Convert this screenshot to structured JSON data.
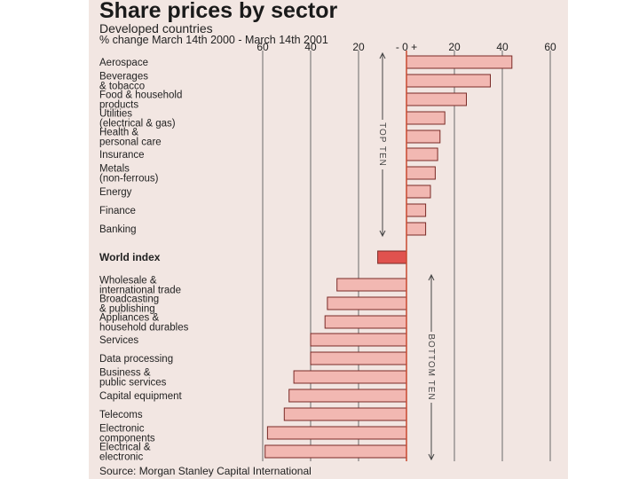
{
  "chart_data": {
    "type": "bar",
    "orientation": "horizontal",
    "title": "Share prices by sector",
    "subtitle": "Developed countries",
    "xlabel": "% change March 14th 2000 - March 14th 2001",
    "x_ticks": [
      "60",
      "40",
      "20",
      "- 0 +",
      "20",
      "40",
      "60"
    ],
    "x_tick_values": [
      -60,
      -40,
      -20,
      0,
      20,
      40,
      60
    ],
    "xlim": [
      -60,
      60
    ],
    "source": "Source: Morgan Stanley Capital International",
    "group_labels": {
      "top": "TOP TEN",
      "bottom": "BOTTOM TEN"
    },
    "categories": [
      {
        "label": [
          "Aerospace"
        ],
        "value": 44
      },
      {
        "label": [
          "Beverages",
          "& tobacco"
        ],
        "value": 35
      },
      {
        "label": [
          "Food & household",
          "products"
        ],
        "value": 25
      },
      {
        "label": [
          "Utilities",
          "(electrical & gas)"
        ],
        "value": 16
      },
      {
        "label": [
          "Health &",
          "personal care"
        ],
        "value": 14
      },
      {
        "label": [
          "Insurance"
        ],
        "value": 13
      },
      {
        "label": [
          "Metals",
          "(non-ferrous)"
        ],
        "value": 12
      },
      {
        "label": [
          "Energy"
        ],
        "value": 10
      },
      {
        "label": [
          "Finance"
        ],
        "value": 8
      },
      {
        "label": [
          "Banking"
        ],
        "value": 8
      },
      {
        "label": [
          "World index"
        ],
        "value": -12,
        "highlight": true
      },
      {
        "label": [
          "Wholesale &",
          "international trade"
        ],
        "value": -29
      },
      {
        "label": [
          "Broadcasting",
          "& publishing"
        ],
        "value": -33
      },
      {
        "label": [
          "Appliances &",
          "household durables"
        ],
        "value": -34
      },
      {
        "label": [
          "Services"
        ],
        "value": -40
      },
      {
        "label": [
          "Data processing"
        ],
        "value": -40
      },
      {
        "label": [
          "Business &",
          "public services"
        ],
        "value": -47
      },
      {
        "label": [
          "Capital equipment"
        ],
        "value": -49
      },
      {
        "label": [
          "Telecoms"
        ],
        "value": -51
      },
      {
        "label": [
          "Electronic",
          "components"
        ],
        "value": -58
      },
      {
        "label": [
          "Electrical &",
          "electronic"
        ],
        "value": -59
      }
    ],
    "colors": {
      "bar": "#f2b8b2",
      "highlight_bar": "#e0524e",
      "bar_edge": "#7a2a26",
      "grid": "#6a6a6a",
      "zero_line": "#c8492f",
      "background": "#f2e6e2"
    }
  }
}
